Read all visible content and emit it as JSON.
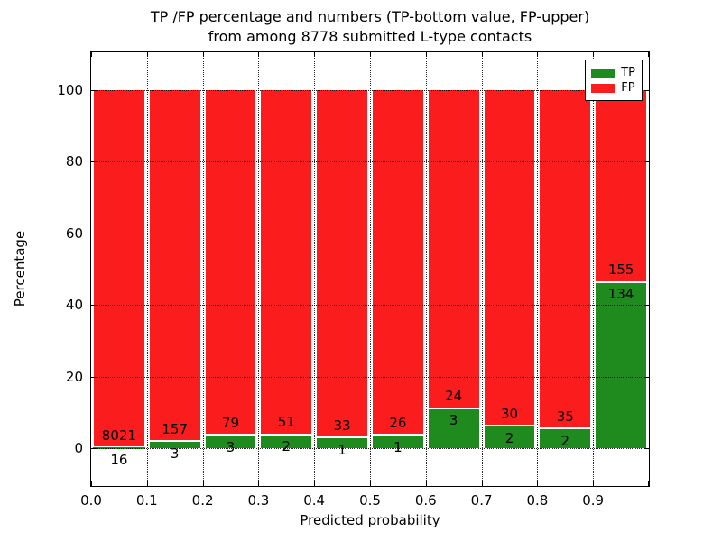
{
  "figure": {
    "title_line1": "TP /FP percentage and numbers (TP-bottom value, FP-upper)",
    "title_line2": "from among 8778 submitted L-type contacts",
    "xlabel": "Predicted probability",
    "ylabel": "Percentage"
  },
  "chart_data": {
    "type": "bar",
    "stacked": true,
    "normalized": "each bar is TP+FP scaled to 100%",
    "title": "TP /FP percentage and numbers (TP-bottom value, FP-upper) from among 8778 submitted L-type contacts",
    "xlabel": "Predicted probability",
    "ylabel": "Percentage",
    "total_contacts": 8778,
    "bins": [
      "0.0-0.1",
      "0.1-0.2",
      "0.2-0.3",
      "0.3-0.4",
      "0.4-0.5",
      "0.5-0.6",
      "0.6-0.7",
      "0.7-0.8",
      "0.8-0.9",
      "0.9-1.0"
    ],
    "series": [
      {
        "name": "TP",
        "color": "#1f8b1f",
        "counts": [
          16,
          3,
          3,
          2,
          1,
          1,
          3,
          2,
          2,
          134
        ]
      },
      {
        "name": "FP",
        "color": "#fb1d1d",
        "counts": [
          8021,
          157,
          79,
          51,
          33,
          26,
          24,
          30,
          35,
          155
        ]
      }
    ],
    "tp_percent_of_bin": [
      0.199,
      1.875,
      3.659,
      3.774,
      2.941,
      3.704,
      11.111,
      6.25,
      5.405,
      46.367
    ],
    "x_tick_labels": [
      "0.0",
      "0.1",
      "0.2",
      "0.3",
      "0.4",
      "0.5",
      "0.6",
      "0.7",
      "0.8",
      "0.9"
    ],
    "y_tick_values": [
      0,
      20,
      40,
      60,
      80,
      100
    ],
    "xlim": [
      0.0,
      1.0
    ],
    "ylim": [
      -10.6,
      110.6
    ],
    "grid": "dotted, on x ticks and y ticks, drawn over bars",
    "legend": {
      "position": "upper right",
      "entries": [
        {
          "label": "TP",
          "color": "#1f8b1f"
        },
        {
          "label": "FP",
          "color": "#fb1d1d"
        }
      ]
    }
  }
}
